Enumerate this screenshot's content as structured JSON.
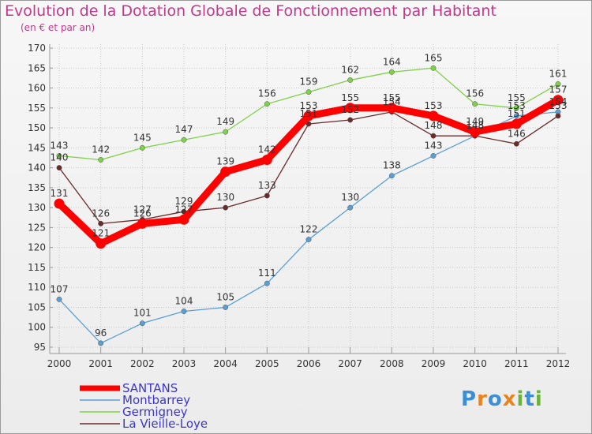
{
  "title": "Evolution de la Dotation Globale de Fonctionnement par Habitant",
  "subtitle": "(en € et par an)",
  "logo_text": "Proxiti",
  "chart_data": {
    "type": "line",
    "title": "Evolution de la Dotation Globale de Fonctionnement par Habitant",
    "ylabel": "(en € et par an)",
    "xlabel": "",
    "x": [
      "2000",
      "2001",
      "2002",
      "2003",
      "2004",
      "2005",
      "2006",
      "2007",
      "2008",
      "2009",
      "2010",
      "2011",
      "2012"
    ],
    "ylim": [
      95,
      170
    ],
    "yticks": [
      95,
      100,
      105,
      110,
      115,
      120,
      125,
      130,
      135,
      140,
      145,
      150,
      155,
      160,
      165,
      170
    ],
    "grid": true,
    "legend_position": "bottom-left",
    "series": [
      {
        "name": "SANTANS",
        "color": "#ff0000",
        "values": [
          131,
          121,
          126,
          127,
          139,
          142,
          153,
          155,
          155,
          153,
          149,
          151,
          157
        ]
      },
      {
        "name": "Montbarrey",
        "color": "#5a9fd4",
        "values": [
          107,
          96,
          101,
          104,
          105,
          111,
          122,
          130,
          138,
          143,
          148,
          153,
          154
        ]
      },
      {
        "name": "Germigney",
        "color": "#7fd14a",
        "values": [
          143,
          142,
          145,
          147,
          149,
          156,
          159,
          162,
          164,
          165,
          156,
          155,
          161
        ]
      },
      {
        "name": "La Vieille-Loye",
        "color": "#6b2a2a",
        "values": [
          140,
          126,
          127,
          129,
          130,
          133,
          151,
          152,
          154,
          148,
          148,
          146,
          153
        ]
      }
    ]
  }
}
